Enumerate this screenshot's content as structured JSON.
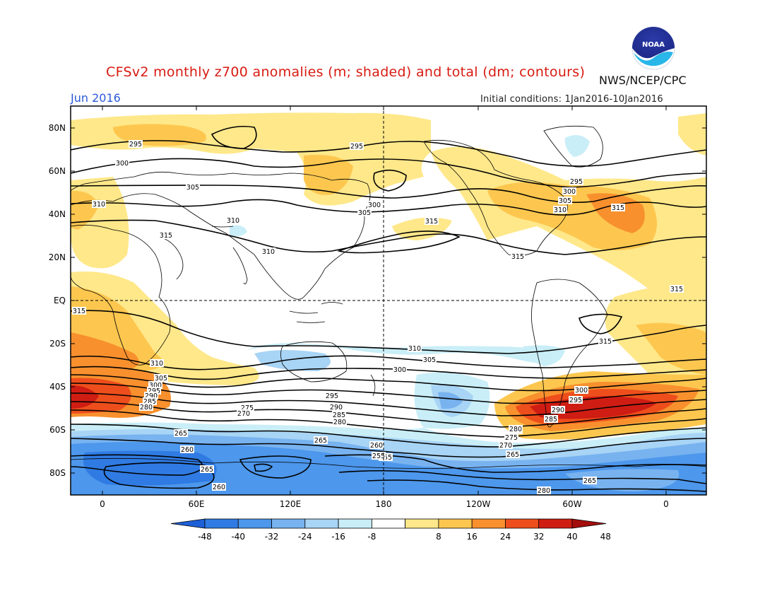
{
  "header": {
    "title": "CFSv2 monthly z700 anomalies (m; shaded) and total (dm; contours)",
    "source": "NWS/NCEP/CPC",
    "month": "Jun 2016",
    "initial_conditions": "Initial conditions: 1Jan2016-10Jan2016",
    "logo_text": "NOAA"
  },
  "axes": {
    "lat_labels": [
      "80N",
      "60N",
      "40N",
      "20N",
      "EQ",
      "20S",
      "40S",
      "60S",
      "80S"
    ],
    "lon_labels": [
      "0",
      "60E",
      "120E",
      "180",
      "120W",
      "60W",
      "0"
    ]
  },
  "contour_labels": [
    "295",
    "295",
    "300",
    "305",
    "310",
    "315",
    "310",
    "310",
    "305",
    "300",
    "315",
    "300",
    "305",
    "310",
    "315",
    "315",
    "295",
    "300",
    "305",
    "310",
    "315",
    "315",
    "315",
    "310",
    "305",
    "300",
    "295",
    "290",
    "285",
    "280",
    "310",
    "305",
    "300",
    "295",
    "290",
    "285",
    "280",
    "275",
    "270",
    "265",
    "260",
    "255",
    "280",
    "275",
    "270",
    "265",
    "260",
    "255",
    "265",
    "260",
    "265",
    "280",
    "265",
    "315",
    "300",
    "295",
    "290",
    "285",
    "280"
  ],
  "colorbar": {
    "labels": [
      "-48",
      "-40",
      "-32",
      "-24",
      "-16",
      "-8",
      "8",
      "16",
      "24",
      "32",
      "40",
      "48"
    ],
    "colors": [
      "#1d5fd6",
      "#2f7be3",
      "#4d97ec",
      "#78b3f0",
      "#a8d4f5",
      "#c9eef7",
      "#ffffff",
      "#ffe88a",
      "#fdc74f",
      "#f8902e",
      "#ee4e1c",
      "#cf1d13",
      "#a50d0d"
    ]
  }
}
